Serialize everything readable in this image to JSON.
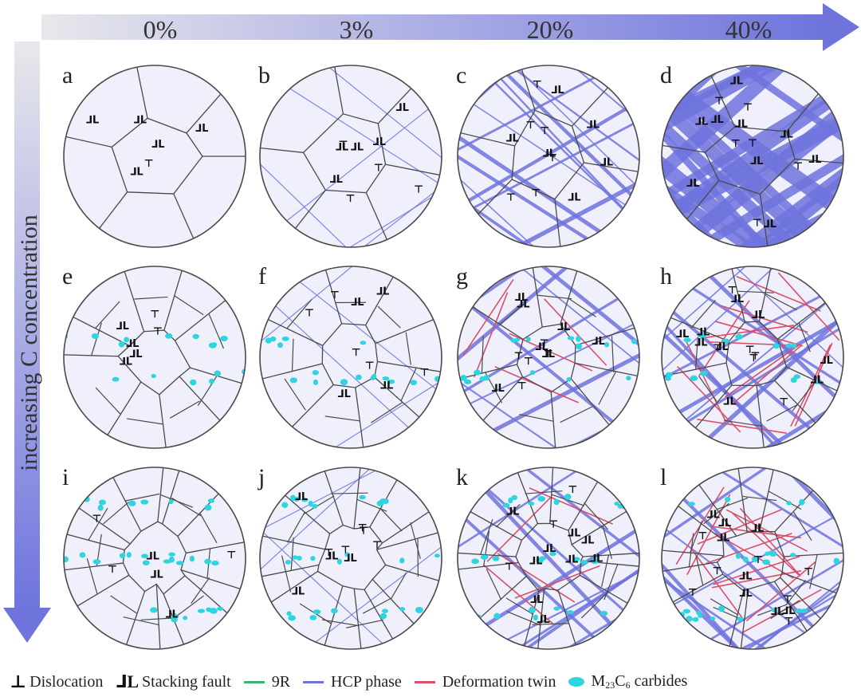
{
  "strain_axis": {
    "labels": [
      "0%",
      "3%",
      "20%",
      "40%"
    ]
  },
  "carbon_axis": {
    "label": "increasing C concentration"
  },
  "panels": [
    "a",
    "b",
    "c",
    "d",
    "e",
    "f",
    "g",
    "h",
    "i",
    "j",
    "k",
    "l"
  ],
  "legend": {
    "dislocation": {
      "symbol": "⊥",
      "label": "Dislocation"
    },
    "stacking_fault": {
      "symbol": "⅃L",
      "label": "Stacking fault"
    },
    "r9": {
      "label": "9R",
      "color": "#3cb371"
    },
    "hcp": {
      "label": "HCP phase",
      "color": "#6f74dd"
    },
    "twin": {
      "label": "Deformation twin",
      "color": "#d9506a"
    },
    "carbide": {
      "label_main": "M",
      "sub1": "23",
      "label_mid": "C",
      "sub2": "6",
      "label_tail": " carbides",
      "color": "#2ed4e0"
    }
  },
  "colors": {
    "grain_fill": "#eff0fb",
    "grain_edge": "#4a4a4a",
    "arrow": "#6f74dd"
  }
}
